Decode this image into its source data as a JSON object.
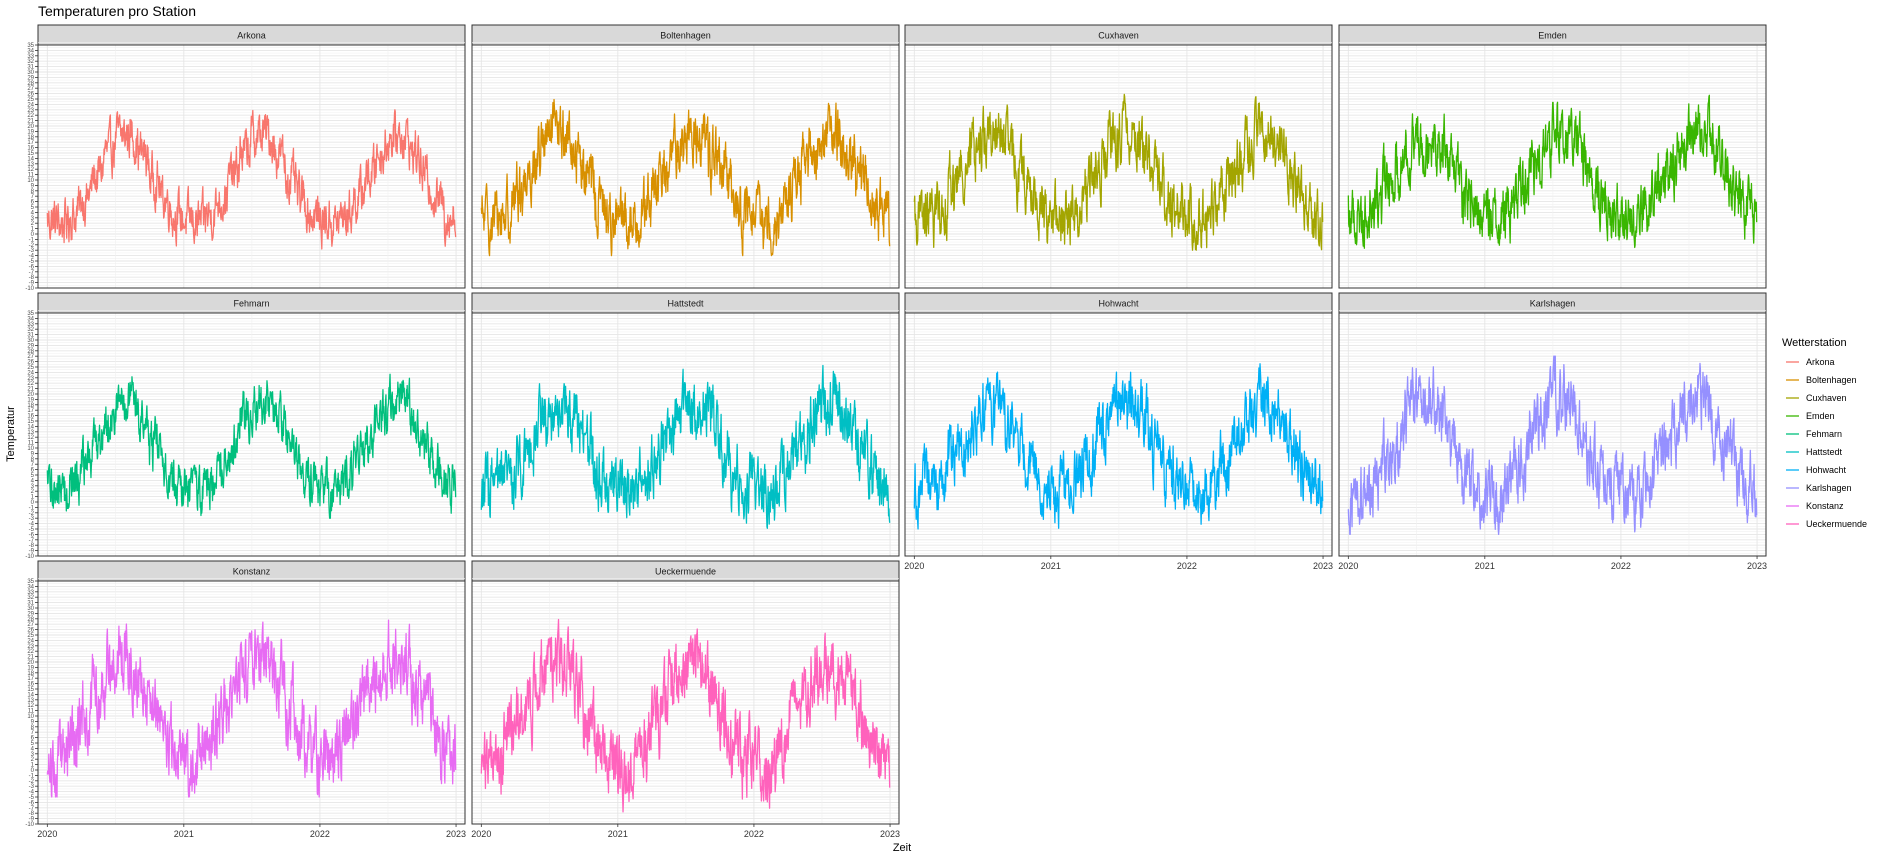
{
  "chart_data": {
    "type": "line",
    "title": "Temperaturen pro Station",
    "xlabel": "Zeit",
    "ylabel": "Temperatur",
    "x_range": [
      "2020-01-01",
      "2022-12-31"
    ],
    "x_ticks": [
      "2020",
      "2021",
      "2022",
      "2023"
    ],
    "ylim": [
      -10,
      35
    ],
    "y_ticks": [
      -10,
      -9,
      -8,
      -7,
      -6,
      -5,
      -4,
      -3,
      -2,
      -1,
      0,
      1,
      2,
      3,
      4,
      5,
      6,
      7,
      8,
      9,
      10,
      11,
      12,
      13,
      14,
      15,
      16,
      17,
      18,
      19,
      20,
      21,
      22,
      23,
      24,
      25,
      26,
      27,
      28,
      29,
      30,
      31,
      32,
      33,
      34,
      35
    ],
    "grid": true,
    "facets": {
      "layout": "wrap",
      "columns": 4,
      "shared_axes": true
    },
    "legend": {
      "title": "Wetterstation",
      "position": "right"
    },
    "series": [
      {
        "name": "Arkona",
        "color": "#F8766D",
        "mean": 9.5,
        "amplitude": 8.5,
        "noise": 1.8,
        "low": -3,
        "high": 23,
        "monthly_means": [
          2.5,
          2.0,
          3.5,
          6.5,
          10.5,
          15.0,
          18.0,
          18.5,
          15.0,
          10.5,
          6.5,
          3.5
        ]
      },
      {
        "name": "Boltenhagen",
        "color": "#D89000",
        "mean": 10.0,
        "amplitude": 9.0,
        "noise": 2.3,
        "low": -4,
        "high": 27,
        "monthly_means": [
          2.5,
          2.5,
          4.5,
          8.0,
          12.0,
          16.0,
          18.5,
          18.5,
          15.0,
          10.5,
          6.0,
          3.0
        ]
      },
      {
        "name": "Cuxhaven",
        "color": "#A3A500",
        "mean": 10.5,
        "amplitude": 8.5,
        "noise": 2.3,
        "low": -3,
        "high": 27,
        "monthly_means": [
          3.0,
          3.0,
          5.0,
          8.5,
          12.5,
          16.0,
          18.5,
          18.5,
          15.5,
          11.0,
          7.0,
          4.0
        ]
      },
      {
        "name": "Emden",
        "color": "#39B600",
        "mean": 10.5,
        "amplitude": 8.5,
        "noise": 2.4,
        "low": -4,
        "high": 28,
        "monthly_means": [
          3.5,
          3.5,
          5.5,
          9.0,
          12.5,
          16.0,
          18.5,
          18.5,
          15.5,
          11.5,
          7.0,
          4.0
        ]
      },
      {
        "name": "Fehmarn",
        "color": "#00BF7D",
        "mean": 9.5,
        "amplitude": 8.5,
        "noise": 1.9,
        "low": -3,
        "high": 25,
        "monthly_means": [
          2.5,
          2.0,
          3.5,
          7.0,
          11.0,
          15.5,
          18.0,
          18.5,
          15.0,
          10.5,
          6.5,
          3.5
        ]
      },
      {
        "name": "Hattstedt",
        "color": "#00BFC4",
        "mean": 9.5,
        "amplitude": 8.5,
        "noise": 2.5,
        "low": -5,
        "high": 26,
        "monthly_means": [
          2.5,
          2.5,
          4.0,
          7.5,
          11.5,
          15.5,
          17.5,
          17.5,
          14.5,
          10.0,
          6.0,
          3.0
        ]
      },
      {
        "name": "Hohwacht",
        "color": "#00B0F6",
        "mean": 9.5,
        "amplitude": 8.5,
        "noise": 2.4,
        "low": -5,
        "high": 28,
        "monthly_means": [
          2.0,
          2.0,
          4.0,
          7.5,
          11.5,
          15.5,
          18.0,
          18.0,
          14.5,
          10.0,
          6.0,
          3.0
        ]
      },
      {
        "name": "Karlshagen",
        "color": "#9590FF",
        "mean": 9.5,
        "amplitude": 9.5,
        "noise": 2.6,
        "low": -6,
        "high": 27,
        "monthly_means": [
          1.5,
          1.5,
          3.5,
          7.5,
          12.0,
          16.5,
          19.0,
          19.0,
          15.0,
          10.0,
          5.5,
          2.0
        ]
      },
      {
        "name": "Konstanz",
        "color": "#E76BF3",
        "mean": 11.0,
        "amplitude": 10.5,
        "noise": 2.8,
        "low": -5,
        "high": 29,
        "monthly_means": [
          1.5,
          2.5,
          6.0,
          10.5,
          14.5,
          19.0,
          21.0,
          20.5,
          16.5,
          11.5,
          6.0,
          2.5
        ]
      },
      {
        "name": "Ueckermuende",
        "color": "#FF62BC",
        "mean": 10.0,
        "amplitude": 10.0,
        "noise": 2.8,
        "low": -8,
        "high": 29,
        "monthly_means": [
          1.0,
          1.5,
          4.5,
          8.5,
          13.0,
          17.5,
          19.5,
          19.0,
          15.0,
          10.0,
          5.5,
          2.0
        ]
      }
    ]
  }
}
